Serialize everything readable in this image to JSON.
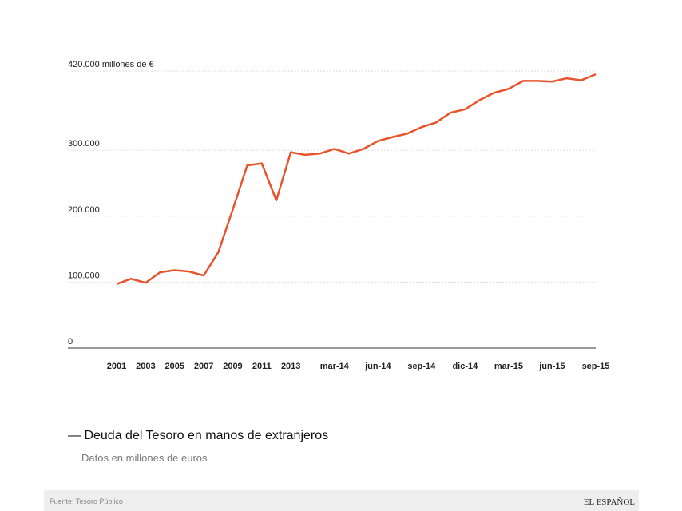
{
  "chart_data": {
    "type": "line",
    "title": "— Deuda del Tesoro en manos de extranjeros",
    "subtitle": "Datos en millones de euros",
    "source": "Fuente: Tesoro Público",
    "brand": "EL ESPAÑOL",
    "categories": [
      "2001",
      null,
      "2003",
      null,
      "2005",
      null,
      "2007",
      null,
      "2009",
      null,
      "2011",
      null,
      "2013",
      null,
      null,
      "mar-14",
      null,
      null,
      "jun-14",
      null,
      null,
      "sep-14",
      null,
      null,
      "dic-14",
      null,
      null,
      "mar-15",
      null,
      null,
      "jun-15",
      null,
      null,
      "sep-15"
    ],
    "series": [
      {
        "color": "#e8532b",
        "values": [
          97000,
          105000,
          99000,
          115000,
          118000,
          116000,
          110000,
          145000,
          210000,
          277000,
          280000,
          224000,
          297000,
          293000,
          295000,
          302000,
          295000,
          302000,
          314000,
          320000,
          325000,
          335000,
          342000,
          357000,
          362000,
          376000,
          387000,
          393000,
          405000,
          405000,
          404000,
          409000,
          406000,
          415000
        ]
      }
    ],
    "ylim": [
      0,
      420000
    ],
    "yticks": [
      0,
      {
        "value": 100000,
        "label": "100.000"
      },
      {
        "value": 200000,
        "label": "200.000"
      },
      {
        "value": 300000,
        "label": "300.000"
      },
      {
        "value": 420000,
        "label": "420.000 millones de €"
      }
    ],
    "grid": true
  }
}
